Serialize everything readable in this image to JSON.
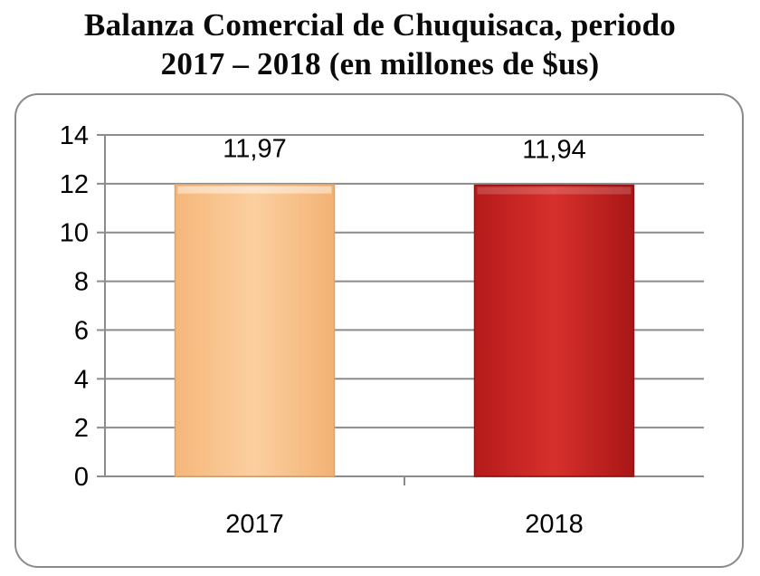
{
  "title_lines": [
    "Balanza Comercial de Chuquisaca, periodo",
    "2017 – 2018 (en millones de $us)"
  ],
  "chart_data": {
    "type": "bar",
    "title": "Balanza Comercial de Chuquisaca, periodo 2017 – 2018 (en millones de $us)",
    "categories": [
      "2017",
      "2018"
    ],
    "values": [
      11.97,
      11.94
    ],
    "data_labels": [
      "11,97",
      "11,94"
    ],
    "xlabel": "",
    "ylabel": "",
    "ylim": [
      0,
      14
    ],
    "yticks": [
      0,
      2,
      4,
      6,
      8,
      10,
      12,
      14
    ],
    "grid": true,
    "legend": "none",
    "bar_colors": [
      "#f9c48c",
      "#c8201f"
    ],
    "bar_edge_colors": [
      "#e2a064",
      "#8c1414"
    ]
  }
}
